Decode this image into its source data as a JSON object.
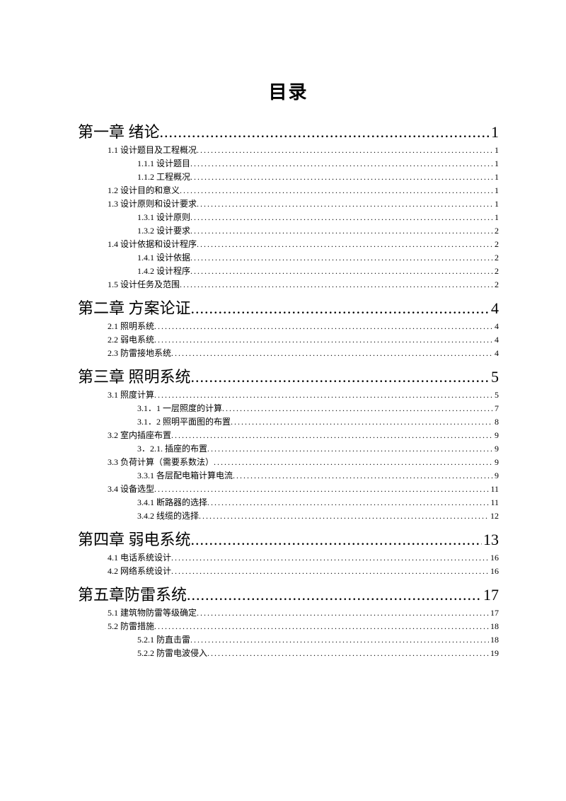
{
  "title": "目录",
  "dots": "......................................................................................................................................................................................",
  "entries": [
    {
      "level": 1,
      "label": "第一章  绪论",
      "page": "1"
    },
    {
      "level": 2,
      "label": "1.1 设计题目及工程概况",
      "page": "1"
    },
    {
      "level": 3,
      "label": "1.1.1 设计题目",
      "page": "1"
    },
    {
      "level": 3,
      "label": "1.1.2 工程概况",
      "page": "1"
    },
    {
      "level": 2,
      "label": "1.2 设计目的和意义",
      "page": "1"
    },
    {
      "level": 2,
      "label": "1.3 设计原则和设计要求",
      "page": "1"
    },
    {
      "level": 3,
      "label": "1.3.1 设计原则",
      "page": "1"
    },
    {
      "level": 3,
      "label": "1.3.2 设计要求",
      "page": "2"
    },
    {
      "level": 2,
      "label": "1.4 设计依据和设计程序",
      "page": "2"
    },
    {
      "level": 3,
      "label": "1.4.1 设计依据",
      "page": "2"
    },
    {
      "level": 3,
      "label": "1.4.2 设计程序",
      "page": "2"
    },
    {
      "level": 2,
      "label": "1.5 设计任务及范围",
      "page": "2"
    },
    {
      "level": 1,
      "label": "第二章 方案论证",
      "page": "4"
    },
    {
      "level": 2,
      "label": "2.1 照明系统",
      "page": "4"
    },
    {
      "level": 2,
      "label": "2.2 弱电系统",
      "page": "4"
    },
    {
      "level": 2,
      "label": "2.3 防雷接地系统",
      "page": "4"
    },
    {
      "level": 1,
      "label": "第三章 照明系统",
      "page": "5"
    },
    {
      "level": 2,
      "label": "3.1 照度计算",
      "page": "5"
    },
    {
      "level": 3,
      "label": "3.1．1 一层照度的计算",
      "page": "7"
    },
    {
      "level": 3,
      "label": "3.1．2 照明平面图的布置",
      "page": "8"
    },
    {
      "level": 2,
      "label": "3.2 室内插座布置",
      "page": "9"
    },
    {
      "level": 3,
      "label": "3．2.1. 插座的布置",
      "page": "9"
    },
    {
      "level": 2,
      "label": "3.3 负荷计算（需要系数法）",
      "page": "9"
    },
    {
      "level": 3,
      "label": "3.3.1 各层配电箱计算电流",
      "page": "9"
    },
    {
      "level": 2,
      "label": "3.4 设备选型",
      "page": "11"
    },
    {
      "level": 3,
      "label": "3.4.1 断路器的选择",
      "page": "11"
    },
    {
      "level": 3,
      "label": "3.4.2 线缆的选择",
      "page": "12"
    },
    {
      "level": 1,
      "label": "第四章 弱电系统",
      "page": "13"
    },
    {
      "level": 2,
      "label": "4.1 电话系统设计",
      "page": "16"
    },
    {
      "level": 2,
      "label": "4.2 网络系统设计",
      "page": "16"
    },
    {
      "level": 1,
      "label": "第五章防雷系统",
      "page": "17"
    },
    {
      "level": 2,
      "label": "5.1  建筑物防雷等级确定",
      "page": "17"
    },
    {
      "level": 2,
      "label": "5.2 防雷措施",
      "page": "18"
    },
    {
      "level": 3,
      "label": "5.2.1 防直击雷",
      "page": "18"
    },
    {
      "level": 3,
      "label": "5.2.2 防雷电波侵入",
      "page": "19"
    }
  ]
}
